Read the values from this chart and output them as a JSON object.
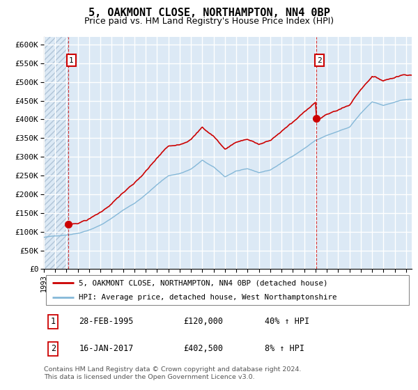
{
  "title": "5, OAKMONT CLOSE, NORTHAMPTON, NN4 0BP",
  "subtitle": "Price paid vs. HM Land Registry's House Price Index (HPI)",
  "background_color": "#dce9f5",
  "hatch_color": "#b0c4d8",
  "grid_color": "#ffffff",
  "line1_color": "#cc0000",
  "line2_color": "#85b8d8",
  "ylim": [
    0,
    620000
  ],
  "yticks": [
    0,
    50000,
    100000,
    150000,
    200000,
    250000,
    300000,
    350000,
    400000,
    450000,
    500000,
    550000,
    600000
  ],
  "xlim_start": 1993.0,
  "xlim_end": 2025.5,
  "legend_label1": "5, OAKMONT CLOSE, NORTHAMPTON, NN4 0BP (detached house)",
  "legend_label2": "HPI: Average price, detached house, West Northamptonshire",
  "table_row1": [
    "1",
    "28-FEB-1995",
    "£120,000",
    "40% ↑ HPI"
  ],
  "table_row2": [
    "2",
    "16-JAN-2017",
    "£402,500",
    "8% ↑ HPI"
  ],
  "footer": "Contains HM Land Registry data © Crown copyright and database right 2024.\nThis data is licensed under the Open Government Licence v3.0.",
  "sale1_t": 1995.125,
  "sale1_price": 120000,
  "sale2_t": 2017.042,
  "sale2_price": 402500,
  "xtick_years": [
    1993,
    1994,
    1995,
    1996,
    1997,
    1998,
    1999,
    2000,
    2001,
    2002,
    2003,
    2004,
    2005,
    2006,
    2007,
    2008,
    2009,
    2010,
    2011,
    2012,
    2013,
    2014,
    2015,
    2016,
    2017,
    2018,
    2019,
    2020,
    2021,
    2022,
    2023,
    2024,
    2025
  ]
}
